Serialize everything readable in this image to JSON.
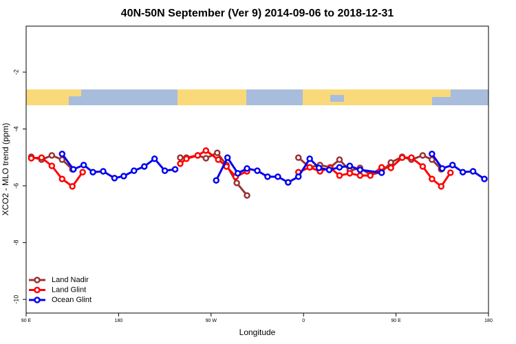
{
  "chart_data": {
    "type": "line",
    "title": "40N-50N September (Ver 9)   2014-09-06 to 2018-12-31",
    "x_label": "Longitude",
    "y_label": "XCO2 - MLO trend (ppm)",
    "xlim": [
      90,
      540
    ],
    "xticks": [
      {
        "value": 90,
        "label": "90 E"
      },
      {
        "value": 180,
        "label": "180"
      },
      {
        "value": 270,
        "label": "90 W"
      },
      {
        "value": 360,
        "label": "0"
      },
      {
        "value": 450,
        "label": "90 E"
      },
      {
        "value": 540,
        "label": "180"
      }
    ],
    "ylim": [
      -10.48,
      -0.38
    ],
    "yticks": [
      -10,
      -8,
      -6,
      -4,
      -2
    ],
    "legend": "bottom-left",
    "series": [
      {
        "name": "Land Nadir",
        "color": "#993333",
        "x": [
          95,
          105,
          115,
          125,
          135,
          null,
          240,
          246,
          257,
          265,
          276,
          285,
          295,
          305,
          null,
          355,
          366,
          376,
          386,
          395,
          405,
          415,
          425,
          436,
          445,
          456,
          465,
          476,
          485,
          494
        ],
        "values": [
          -4.98,
          -5.08,
          -4.93,
          -5.08,
          -5.42,
          null,
          -5.01,
          -5.01,
          -4.93,
          -5.03,
          -4.84,
          -5.27,
          -5.9,
          -6.34,
          null,
          -5.01,
          -5.35,
          -5.27,
          -5.35,
          -5.08,
          -5.47,
          -5.37,
          -5.61,
          -5.52,
          -5.18,
          -4.98,
          -5.08,
          -4.93,
          -5.08,
          -5.42
        ]
      },
      {
        "name": "Land Glint",
        "color": "#ff0000",
        "x": [
          95,
          105,
          115,
          125,
          135,
          145,
          null,
          240,
          246,
          257,
          265,
          277,
          285,
          294,
          305,
          null,
          355,
          366,
          376,
          386,
          395,
          405,
          415,
          425,
          436,
          445,
          456,
          465,
          476,
          485,
          494,
          503
        ],
        "values": [
          -5.03,
          -5.01,
          -5.3,
          -5.76,
          -6.02,
          -5.52,
          null,
          -5.22,
          -5.05,
          -4.93,
          -4.76,
          -5.08,
          -5.32,
          -5.68,
          -5.49,
          null,
          -5.52,
          -5.35,
          -5.49,
          -5.37,
          -5.64,
          -5.56,
          -5.64,
          -5.64,
          -5.35,
          -5.37,
          -5.01,
          -5.01,
          -5.32,
          -5.76,
          -6.02,
          -5.54
        ]
      },
      {
        "name": "Ocean Glint",
        "color": "#0000ee",
        "x": [
          125,
          136,
          146,
          155,
          165,
          176,
          185,
          195,
          205,
          215,
          225,
          235,
          null,
          275,
          286,
          296,
          305,
          315,
          325,
          335,
          345,
          355,
          366,
          375,
          385,
          395,
          405,
          415,
          436,
          null,
          485,
          495,
          505,
          515,
          525,
          536
        ],
        "values": [
          -4.88,
          -5.42,
          -5.27,
          -5.52,
          -5.49,
          -5.73,
          -5.66,
          -5.47,
          -5.32,
          -5.05,
          -5.47,
          -5.42,
          null,
          -5.81,
          -5.01,
          -5.56,
          -5.39,
          -5.47,
          -5.68,
          -5.68,
          -5.88,
          -5.68,
          -5.05,
          -5.37,
          -5.44,
          -5.35,
          -5.3,
          -5.44,
          -5.54,
          null,
          -4.88,
          -5.39,
          -5.27,
          -5.52,
          -5.49,
          -5.76
        ]
      }
    ]
  }
}
